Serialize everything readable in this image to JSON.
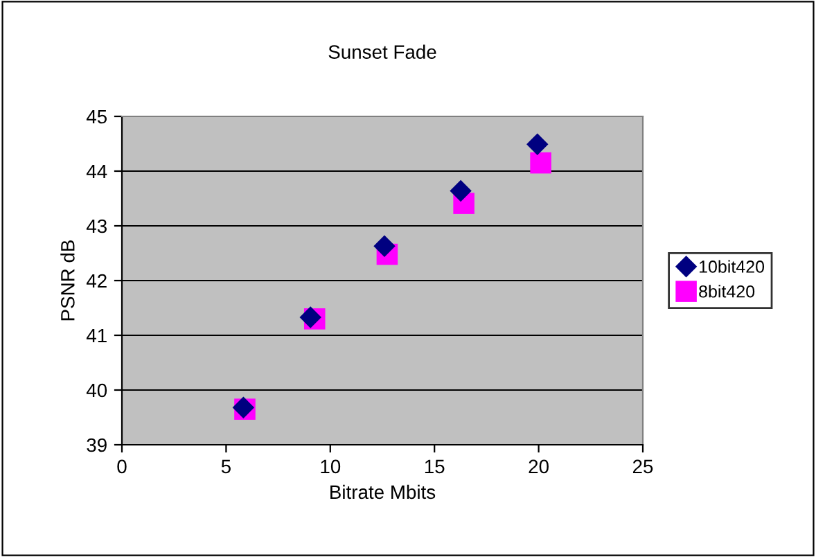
{
  "chart_data": {
    "type": "scatter",
    "title": "Sunset Fade",
    "xlabel": "Bitrate Mbits",
    "ylabel": "PSNR dB",
    "xlim": [
      0,
      25
    ],
    "xticks": [
      0,
      5,
      10,
      15,
      20,
      25
    ],
    "ylim": [
      39,
      45
    ],
    "yticks": [
      39,
      40,
      41,
      42,
      43,
      44,
      45
    ],
    "grid": "y",
    "legend": "right",
    "series": [
      {
        "name": "10bit420",
        "color": "#000080",
        "marker": "diamond",
        "x": [
          5.83,
          9.05,
          12.6,
          16.26,
          19.94
        ],
        "values": [
          39.68,
          41.33,
          42.63,
          43.64,
          44.49
        ]
      },
      {
        "name": "8bit420",
        "color": "#ff00ff",
        "marker": "square",
        "x": [
          5.9,
          9.25,
          12.73,
          16.41,
          20.1
        ],
        "values": [
          39.65,
          41.3,
          42.48,
          43.41,
          44.15
        ]
      }
    ]
  }
}
